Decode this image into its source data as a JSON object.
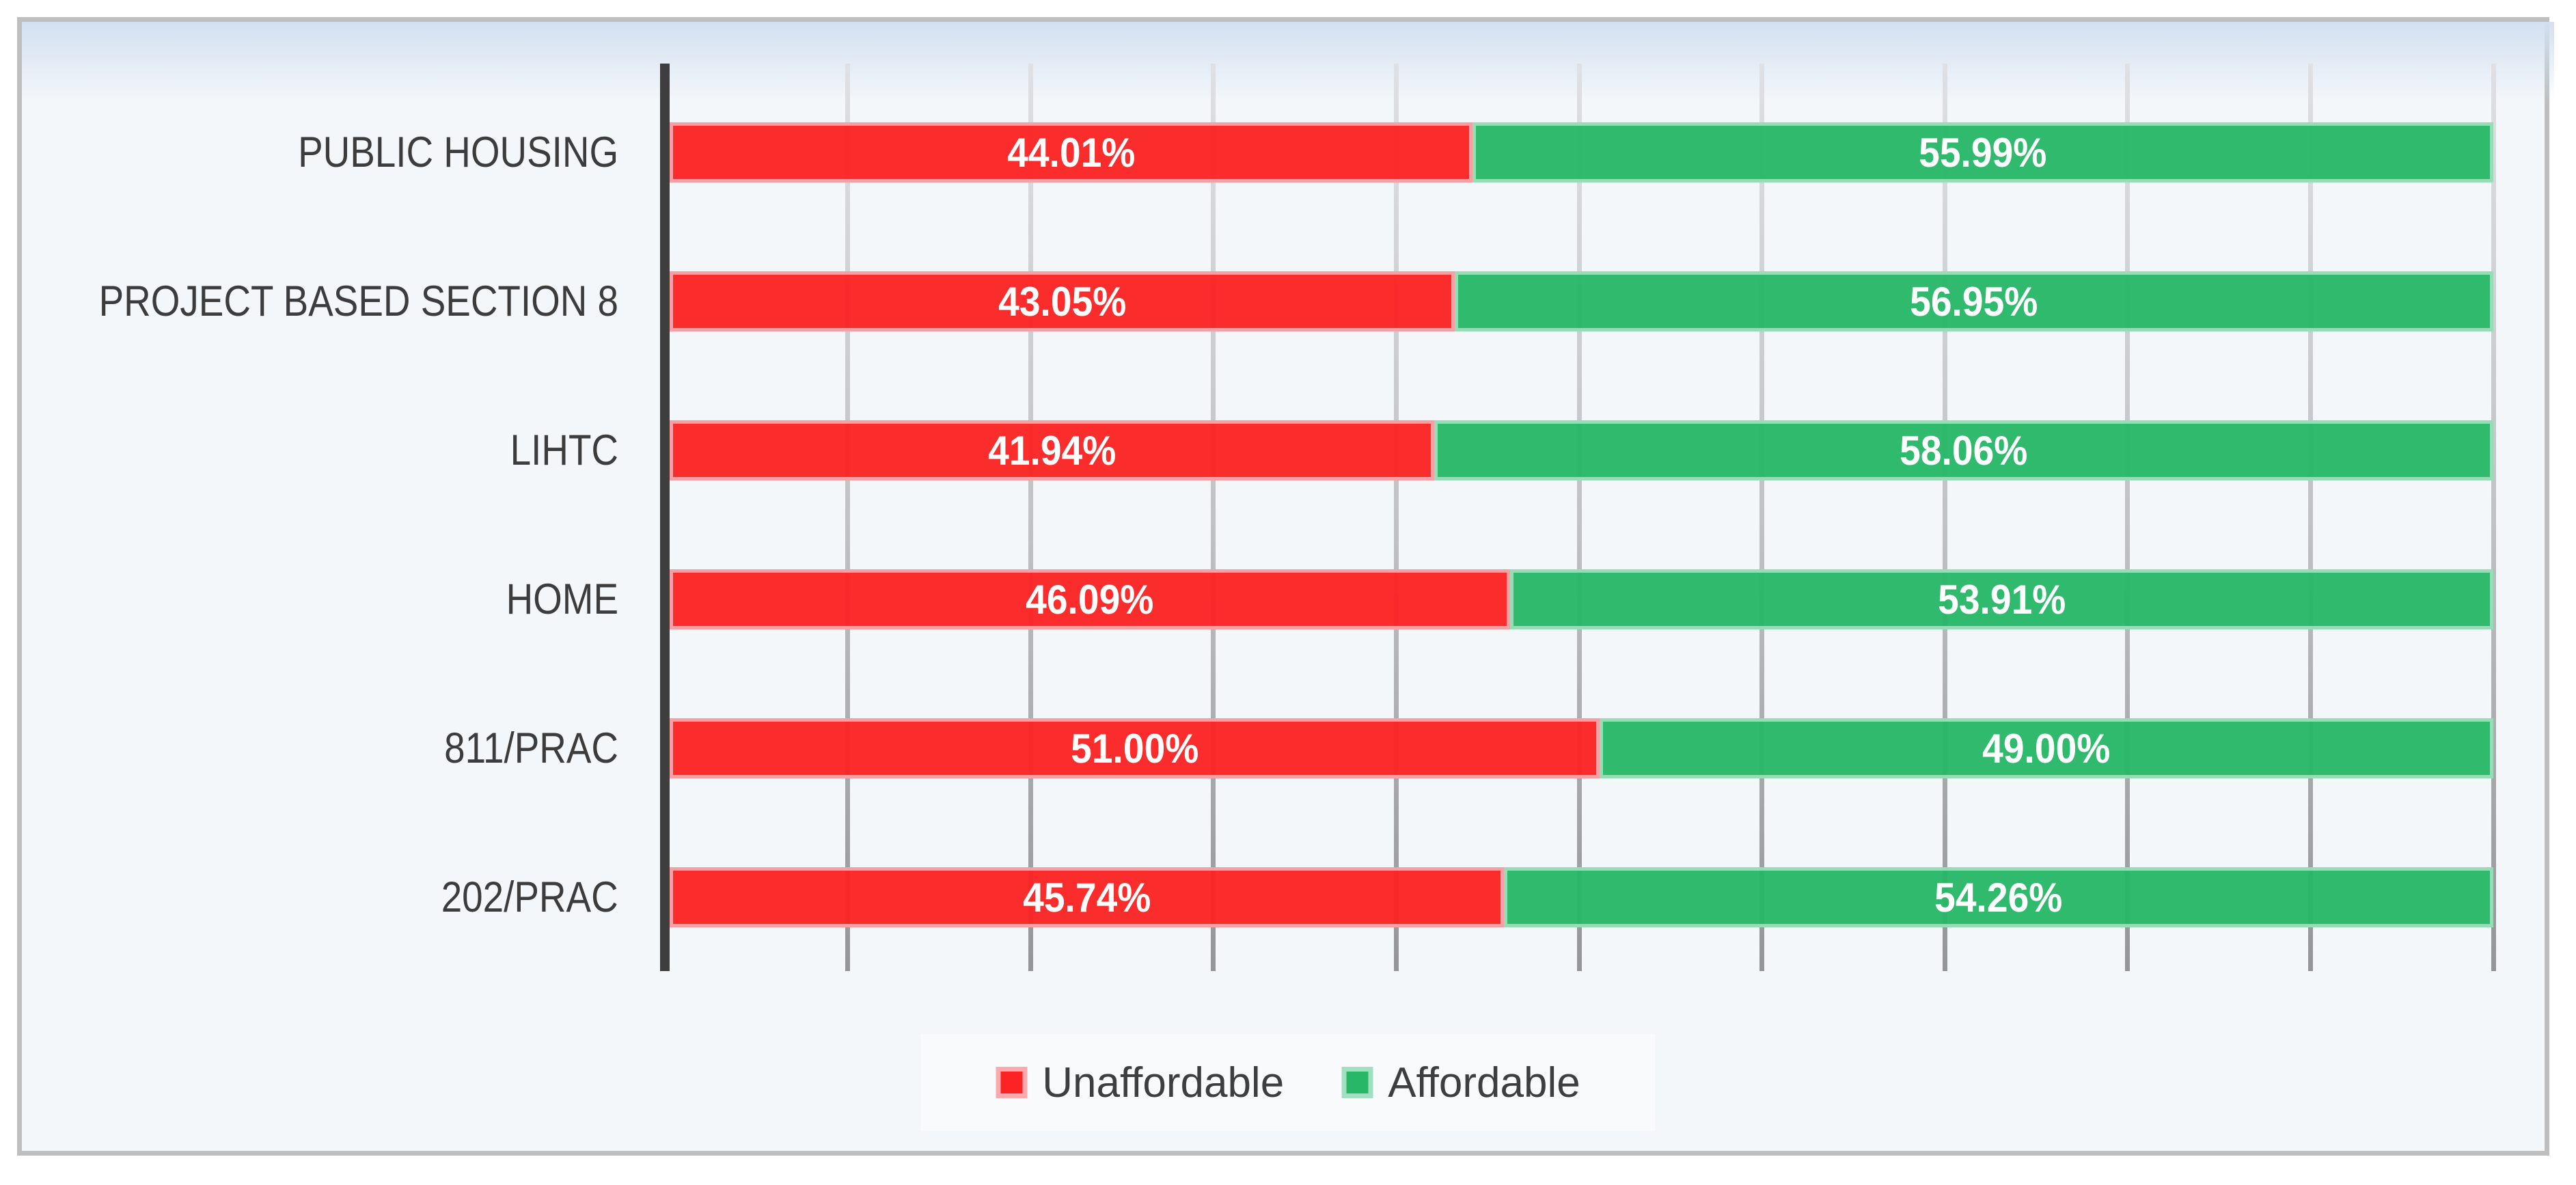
{
  "chart_data": {
    "type": "bar",
    "orientation": "horizontal",
    "stacked": true,
    "title": "",
    "xlabel": "",
    "ylabel": "",
    "xlim": [
      0,
      100
    ],
    "gridline_interval_pct": 10,
    "grid": true,
    "legend_position": "bottom",
    "value_label_format": "0.00%",
    "categories": [
      "PUBLIC HOUSING",
      "PROJECT BASED SECTION 8",
      "LIHTC",
      "HOME",
      "811/PRAC",
      "202/PRAC"
    ],
    "series": [
      {
        "name": "Unaffordable",
        "color": "#FB2323",
        "border_color": "#F99EA3",
        "values": [
          44.01,
          43.05,
          41.94,
          46.09,
          51.0,
          45.74
        ]
      },
      {
        "name": "Affordable",
        "color": "#28B766",
        "border_color": "#96DCB5",
        "values": [
          55.99,
          56.95,
          58.06,
          53.91,
          49.0,
          54.26
        ]
      }
    ]
  },
  "colors": {
    "page_background": "#FFFFFF",
    "chart_background": "#F4F7FA",
    "frame_border": "#BFBFBF",
    "top_gradient": "#D2E0F0",
    "axis_line": "#3E3E3E",
    "gridline_top": "#DEE0E3",
    "gridline_bottom": "#939598",
    "category_label_text": "#3C3C3C",
    "value_label_text": "#FFFFFF",
    "legend_panel": "#F9FAFC",
    "legend_text": "#3E3E3E"
  }
}
